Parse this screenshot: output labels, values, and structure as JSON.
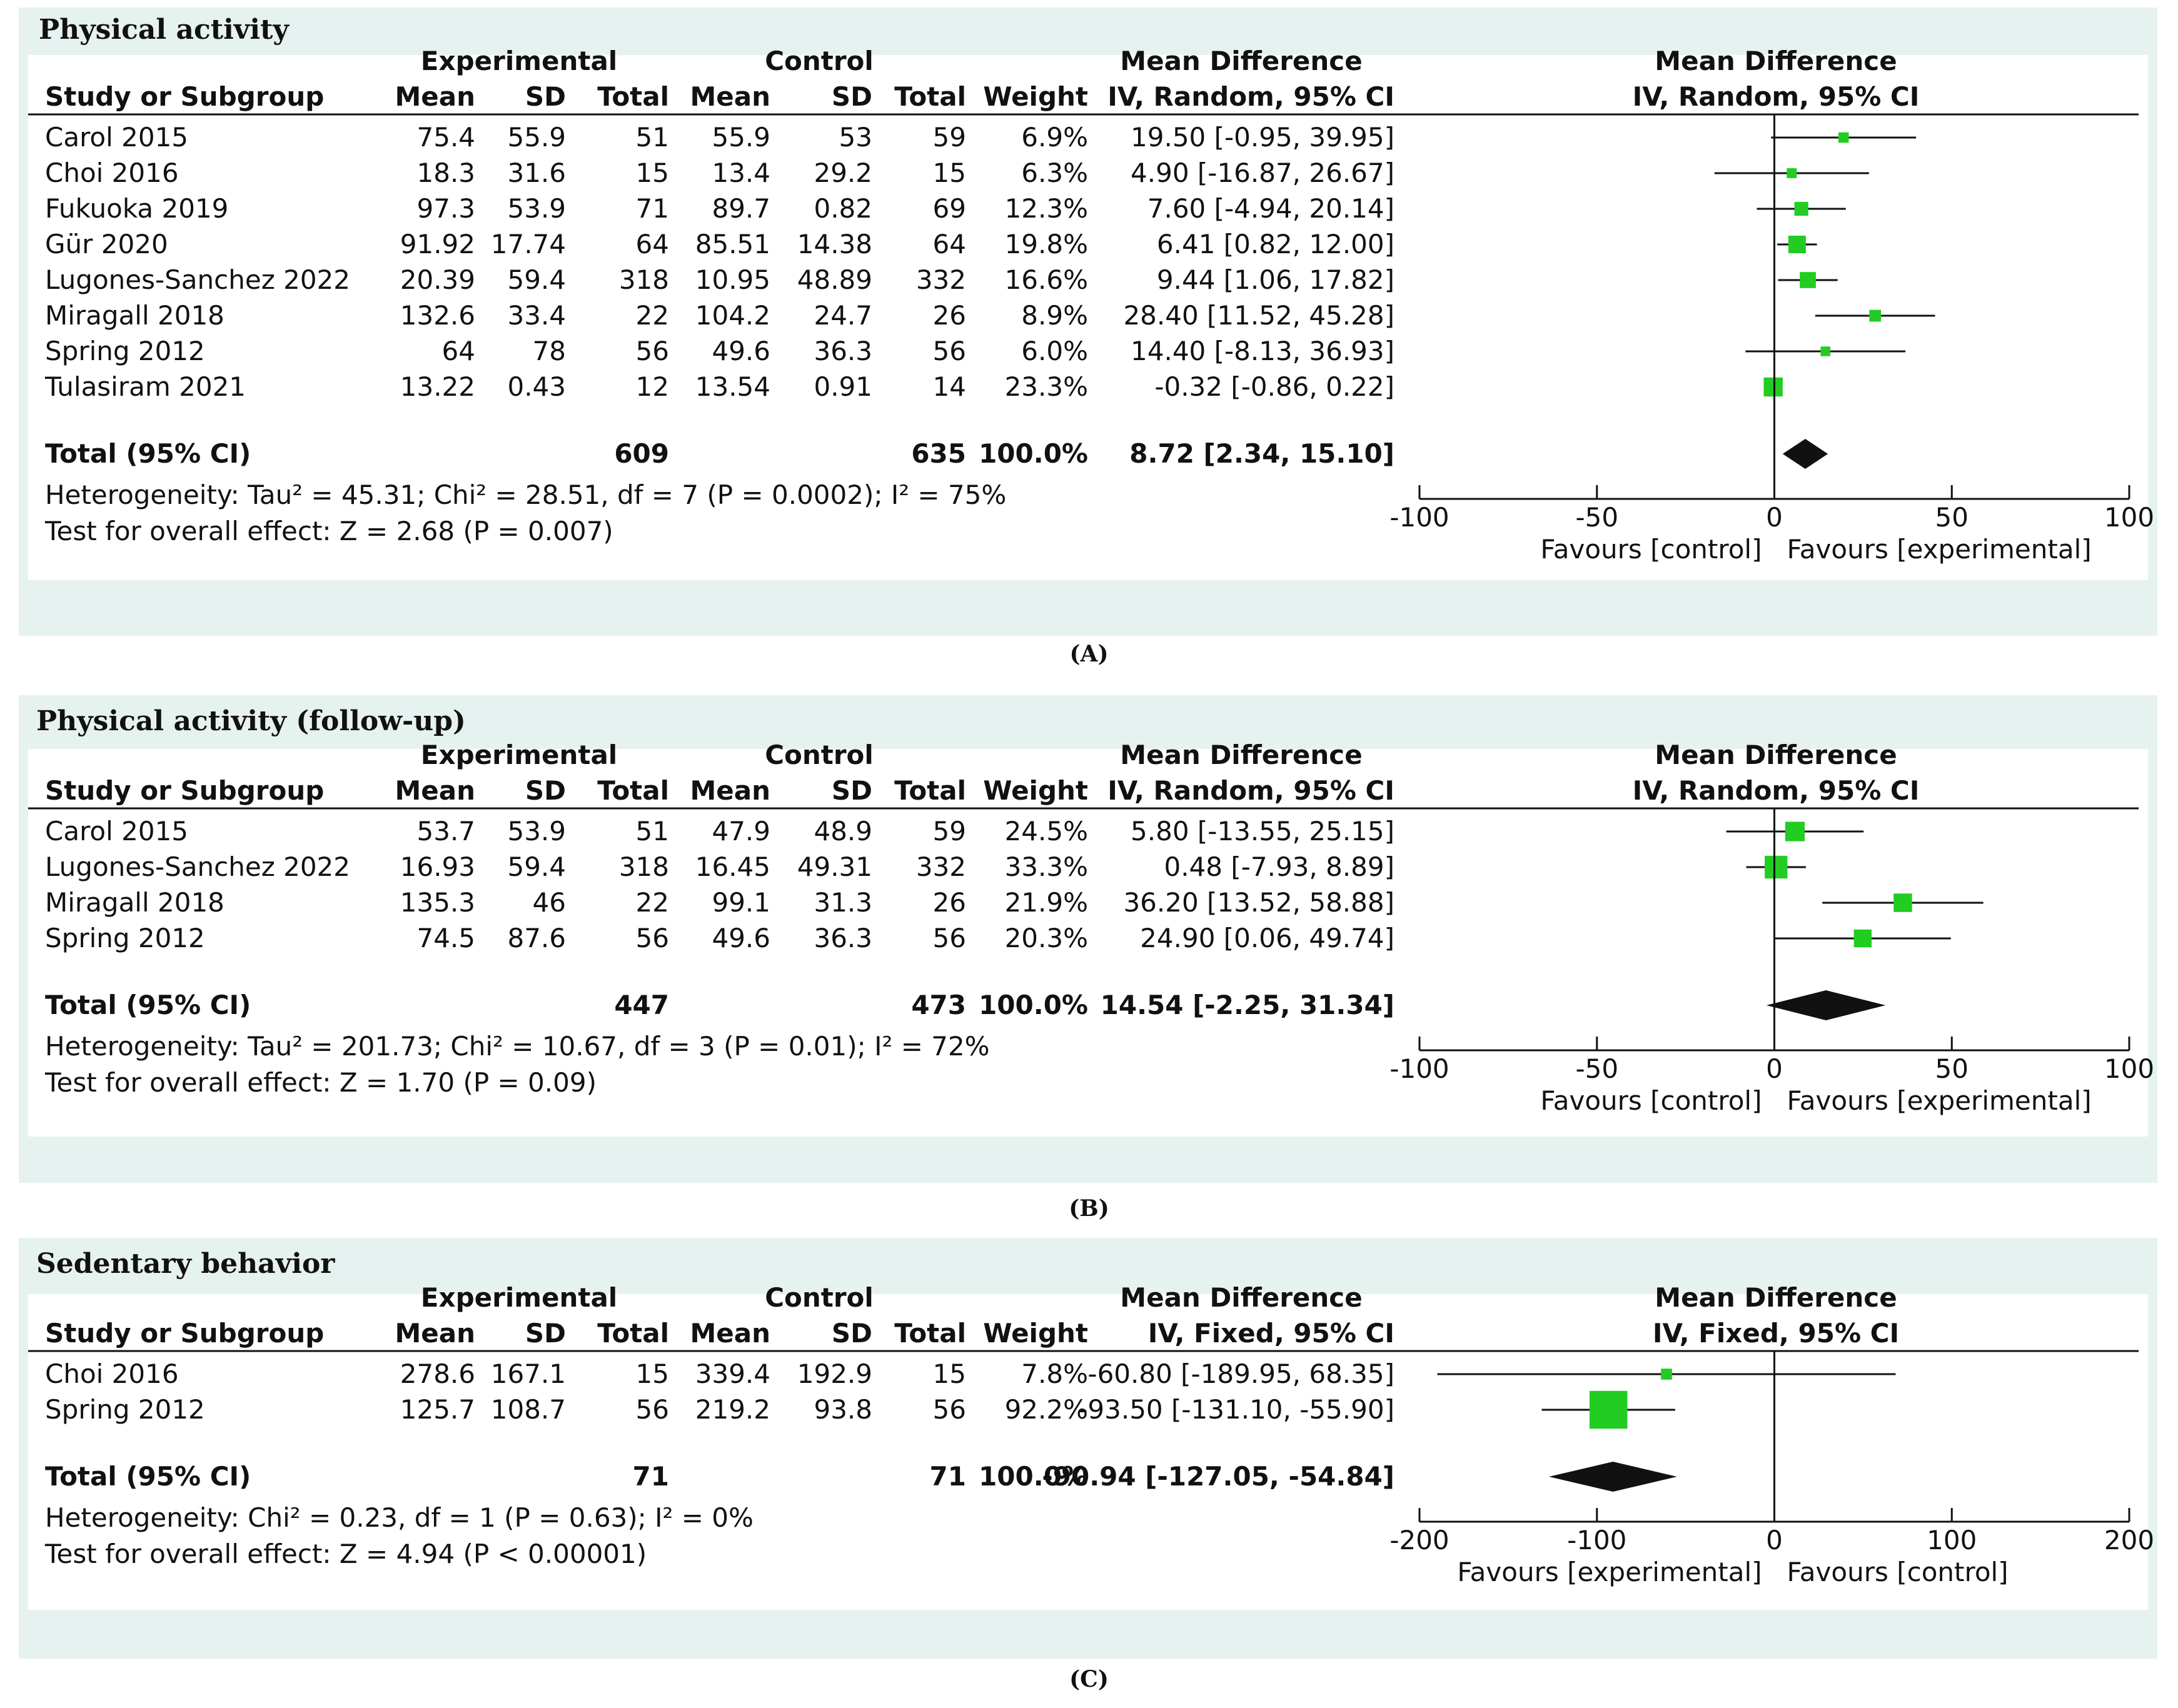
{
  "chart_data": [
    {
      "type": "forest",
      "title": "Physical activity",
      "caption": "(A)",
      "group_headers": {
        "experimental": "Experimental",
        "control": "Control",
        "md": "Mean Difference",
        "plot": "Mean Difference"
      },
      "columns": [
        "Study or Subgroup",
        "Mean",
        "SD",
        "Total",
        "Mean",
        "SD",
        "Total",
        "Weight",
        "IV, Random, 95% CI"
      ],
      "plot_header": "IV, Random, 95% CI",
      "rows": [
        {
          "study": "Carol 2015",
          "e_mean": "75.4",
          "e_sd": "55.9",
          "e_total": "51",
          "c_mean": "55.9",
          "c_sd": "53",
          "c_total": "59",
          "weight": "6.9%",
          "ci_text": "19.50 [-0.95, 39.95]",
          "md": 19.5,
          "lo": -0.95,
          "hi": 39.95,
          "w": 6.9
        },
        {
          "study": "Choi 2016",
          "e_mean": "18.3",
          "e_sd": "31.6",
          "e_total": "15",
          "c_mean": "13.4",
          "c_sd": "29.2",
          "c_total": "15",
          "weight": "6.3%",
          "ci_text": "4.90 [-16.87, 26.67]",
          "md": 4.9,
          "lo": -16.87,
          "hi": 26.67,
          "w": 6.3
        },
        {
          "study": "Fukuoka 2019",
          "e_mean": "97.3",
          "e_sd": "53.9",
          "e_total": "71",
          "c_mean": "89.7",
          "c_sd": "0.82",
          "c_total": "69",
          "weight": "12.3%",
          "ci_text": "7.60 [-4.94, 20.14]",
          "md": 7.6,
          "lo": -4.94,
          "hi": 20.14,
          "w": 12.3
        },
        {
          "study": "Gür 2020",
          "e_mean": "91.92",
          "e_sd": "17.74",
          "e_total": "64",
          "c_mean": "85.51",
          "c_sd": "14.38",
          "c_total": "64",
          "weight": "19.8%",
          "ci_text": "6.41 [0.82, 12.00]",
          "md": 6.41,
          "lo": 0.82,
          "hi": 12.0,
          "w": 19.8
        },
        {
          "study": "Lugones-Sanchez 2022",
          "e_mean": "20.39",
          "e_sd": "59.4",
          "e_total": "318",
          "c_mean": "10.95",
          "c_sd": "48.89",
          "c_total": "332",
          "weight": "16.6%",
          "ci_text": "9.44 [1.06, 17.82]",
          "md": 9.44,
          "lo": 1.06,
          "hi": 17.82,
          "w": 16.6
        },
        {
          "study": "Miragall 2018",
          "e_mean": "132.6",
          "e_sd": "33.4",
          "e_total": "22",
          "c_mean": "104.2",
          "c_sd": "24.7",
          "c_total": "26",
          "weight": "8.9%",
          "ci_text": "28.40 [11.52, 45.28]",
          "md": 28.4,
          "lo": 11.52,
          "hi": 45.28,
          "w": 8.9
        },
        {
          "study": "Spring 2012",
          "e_mean": "64",
          "e_sd": "78",
          "e_total": "56",
          "c_mean": "49.6",
          "c_sd": "36.3",
          "c_total": "56",
          "weight": "6.0%",
          "ci_text": "14.40 [-8.13, 36.93]",
          "md": 14.4,
          "lo": -8.13,
          "hi": 36.93,
          "w": 6.0
        },
        {
          "study": "Tulasiram 2021",
          "e_mean": "13.22",
          "e_sd": "0.43",
          "e_total": "12",
          "c_mean": "13.54",
          "c_sd": "0.91",
          "c_total": "14",
          "weight": "23.3%",
          "ci_text": "-0.32 [-0.86, 0.22]",
          "md": -0.32,
          "lo": -0.86,
          "hi": 0.22,
          "w": 23.3
        }
      ],
      "total": {
        "label": "Total (95% CI)",
        "e_total": "609",
        "c_total": "635",
        "weight": "100.0%",
        "ci_text": "8.72 [2.34, 15.10]",
        "md": 8.72,
        "lo": 2.34,
        "hi": 15.1
      },
      "heterogeneity": "Heterogeneity: Tau² = 45.31; Chi² = 28.51, df = 7 (P = 0.0002); I² = 75%",
      "overall": "Test for overall effect: Z = 2.68 (P = 0.007)",
      "xlim": [
        -100,
        100
      ],
      "ticks": [
        -100,
        -50,
        0,
        50,
        100
      ],
      "tick_labels": [
        "-100",
        "-50",
        "0",
        "50",
        "100"
      ],
      "favours_left": "Favours [control]",
      "favours_right": "Favours [experimental]"
    },
    {
      "type": "forest",
      "title": "Physical activity (follow-up)",
      "caption": "(B)",
      "group_headers": {
        "experimental": "Experimental",
        "control": "Control",
        "md": "Mean Difference",
        "plot": "Mean Difference"
      },
      "columns": [
        "Study or Subgroup",
        "Mean",
        "SD",
        "Total",
        "Mean",
        "SD",
        "Total",
        "Weight",
        "IV, Random, 95% CI"
      ],
      "plot_header": "IV, Random, 95% CI",
      "rows": [
        {
          "study": "Carol 2015",
          "e_mean": "53.7",
          "e_sd": "53.9",
          "e_total": "51",
          "c_mean": "47.9",
          "c_sd": "48.9",
          "c_total": "59",
          "weight": "24.5%",
          "ci_text": "5.80 [-13.55, 25.15]",
          "md": 5.8,
          "lo": -13.55,
          "hi": 25.15,
          "w": 24.5
        },
        {
          "study": "Lugones-Sanchez 2022",
          "e_mean": "16.93",
          "e_sd": "59.4",
          "e_total": "318",
          "c_mean": "16.45",
          "c_sd": "49.31",
          "c_total": "332",
          "weight": "33.3%",
          "ci_text": "0.48 [-7.93, 8.89]",
          "md": 0.48,
          "lo": -7.93,
          "hi": 8.89,
          "w": 33.3
        },
        {
          "study": "Miragall 2018",
          "e_mean": "135.3",
          "e_sd": "46",
          "e_total": "22",
          "c_mean": "99.1",
          "c_sd": "31.3",
          "c_total": "26",
          "weight": "21.9%",
          "ci_text": "36.20 [13.52, 58.88]",
          "md": 36.2,
          "lo": 13.52,
          "hi": 58.88,
          "w": 21.9
        },
        {
          "study": "Spring 2012",
          "e_mean": "74.5",
          "e_sd": "87.6",
          "e_total": "56",
          "c_mean": "49.6",
          "c_sd": "36.3",
          "c_total": "56",
          "weight": "20.3%",
          "ci_text": "24.90 [0.06, 49.74]",
          "md": 24.9,
          "lo": 0.06,
          "hi": 49.74,
          "w": 20.3
        }
      ],
      "total": {
        "label": "Total (95% CI)",
        "e_total": "447",
        "c_total": "473",
        "weight": "100.0%",
        "ci_text": "14.54 [-2.25, 31.34]",
        "md": 14.54,
        "lo": -2.25,
        "hi": 31.34
      },
      "heterogeneity": "Heterogeneity: Tau² = 201.73; Chi² = 10.67, df = 3 (P = 0.01); I² = 72%",
      "overall": "Test for overall effect: Z = 1.70 (P = 0.09)",
      "xlim": [
        -100,
        100
      ],
      "ticks": [
        -100,
        -50,
        0,
        50,
        100
      ],
      "tick_labels": [
        "-100",
        "-50",
        "0",
        "50",
        "100"
      ],
      "favours_left": "Favours [control]",
      "favours_right": "Favours [experimental]"
    },
    {
      "type": "forest",
      "title": "Sedentary behavior",
      "caption": "(C)",
      "group_headers": {
        "experimental": "Experimental",
        "control": "Control",
        "md": "Mean Difference",
        "plot": "Mean Difference"
      },
      "columns": [
        "Study or Subgroup",
        "Mean",
        "SD",
        "Total",
        "Mean",
        "SD",
        "Total",
        "Weight",
        "IV, Fixed, 95% CI"
      ],
      "plot_header": "IV, Fixed, 95% CI",
      "rows": [
        {
          "study": "Choi 2016",
          "e_mean": "278.6",
          "e_sd": "167.1",
          "e_total": "15",
          "c_mean": "339.4",
          "c_sd": "192.9",
          "c_total": "15",
          "weight": "7.8%",
          "ci_text": "-60.80 [-189.95, 68.35]",
          "md": -60.8,
          "lo": -189.95,
          "hi": 68.35,
          "w": 7.8
        },
        {
          "study": "Spring 2012",
          "e_mean": "125.7",
          "e_sd": "108.7",
          "e_total": "56",
          "c_mean": "219.2",
          "c_sd": "93.8",
          "c_total": "56",
          "weight": "92.2%",
          "ci_text": "-93.50 [-131.10, -55.90]",
          "md": -93.5,
          "lo": -131.1,
          "hi": -55.9,
          "w": 92.2
        }
      ],
      "total": {
        "label": "Total (95% CI)",
        "e_total": "71",
        "c_total": "71",
        "weight": "100.0%",
        "ci_text": "-90.94 [-127.05, -54.84]",
        "md": -90.94,
        "lo": -127.05,
        "hi": -54.84
      },
      "heterogeneity": "Heterogeneity: Chi² = 0.23, df = 1 (P = 0.63); I² = 0%",
      "overall": "Test for overall effect: Z = 4.94 (P < 0.00001)",
      "xlim": [
        -200,
        200
      ],
      "ticks": [
        -200,
        -100,
        0,
        100,
        200
      ],
      "tick_labels": [
        "-200",
        "-100",
        "0",
        "100",
        "200"
      ],
      "favours_left": "Favours [experimental]",
      "favours_right": "Favours [control]"
    }
  ],
  "colors": {
    "square": "#22cc22",
    "panel_bg": "#e6f2f0",
    "ink": "#111111"
  }
}
